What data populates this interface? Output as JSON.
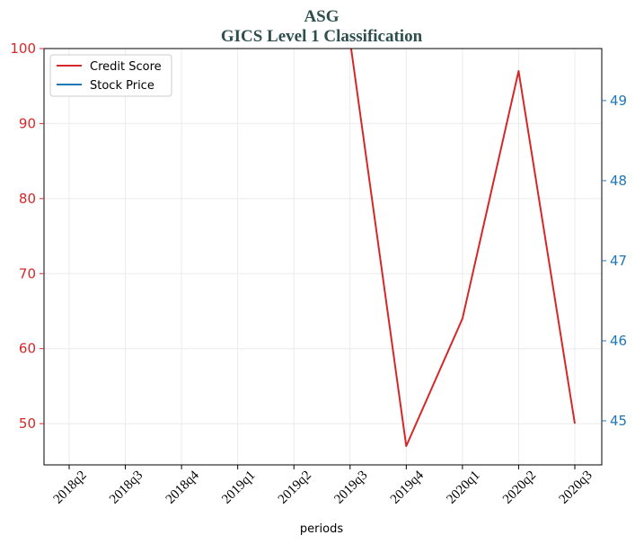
{
  "chart_data": {
    "type": "line",
    "title": "ASG",
    "subtitle": "GICS Level 1 Classification",
    "xlabel": "periods",
    "ylabel_left": "",
    "ylabel_right": "",
    "categories": [
      "2018q2",
      "2018q3",
      "2018q4",
      "2019q1",
      "2019q2",
      "2019q3",
      "2019q4",
      "2020q1",
      "2020q2",
      "2020q3"
    ],
    "left_axis": {
      "ylim": [
        44.5,
        100
      ],
      "ticks": [
        50,
        60,
        70,
        80,
        90,
        100
      ]
    },
    "right_axis": {
      "ylim": [
        44.45,
        49.65
      ],
      "ticks": [
        45,
        46,
        47,
        48,
        49
      ]
    },
    "series": [
      {
        "name": "Credit Score",
        "axis": "left",
        "color": "#d62728",
        "values": [
          null,
          null,
          null,
          null,
          null,
          101,
          47,
          64,
          97,
          50
        ]
      },
      {
        "name": "Stock Price",
        "axis": "right",
        "color": "#1f77b4",
        "values": [
          null,
          null,
          null,
          null,
          null,
          null,
          null,
          null,
          null,
          null
        ]
      }
    ],
    "left_tick_color": "#d62728",
    "right_tick_color": "#1f77b4",
    "grid": true,
    "legend_position": "upper-left"
  }
}
